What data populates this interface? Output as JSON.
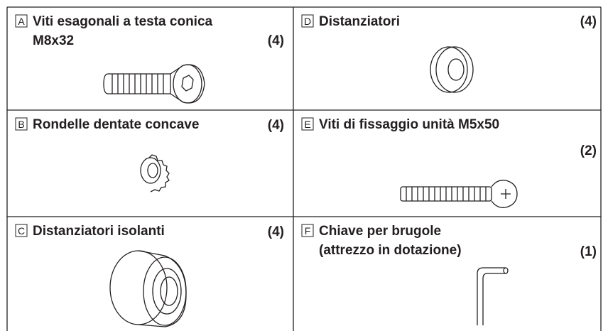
{
  "items": [
    {
      "letter": "A",
      "lines": [
        "Viti esagonali a testa conica",
        "M8x32"
      ],
      "quantity": "(4)"
    },
    {
      "letter": "D",
      "lines": [
        "Distanziatori"
      ],
      "quantity": "(4)"
    },
    {
      "letter": "B",
      "lines": [
        "Rondelle dentate concave"
      ],
      "quantity": "(4)"
    },
    {
      "letter": "E",
      "lines": [
        "Viti di fissaggio unità M5x50"
      ],
      "quantity": "(2)"
    },
    {
      "letter": "C",
      "lines": [
        "Distanziatori isolanti"
      ],
      "quantity": "(4)"
    },
    {
      "letter": "F",
      "lines": [
        "Chiave per brugole",
        " (attrezzo in dotazione)"
      ],
      "quantity": "(1)"
    }
  ]
}
